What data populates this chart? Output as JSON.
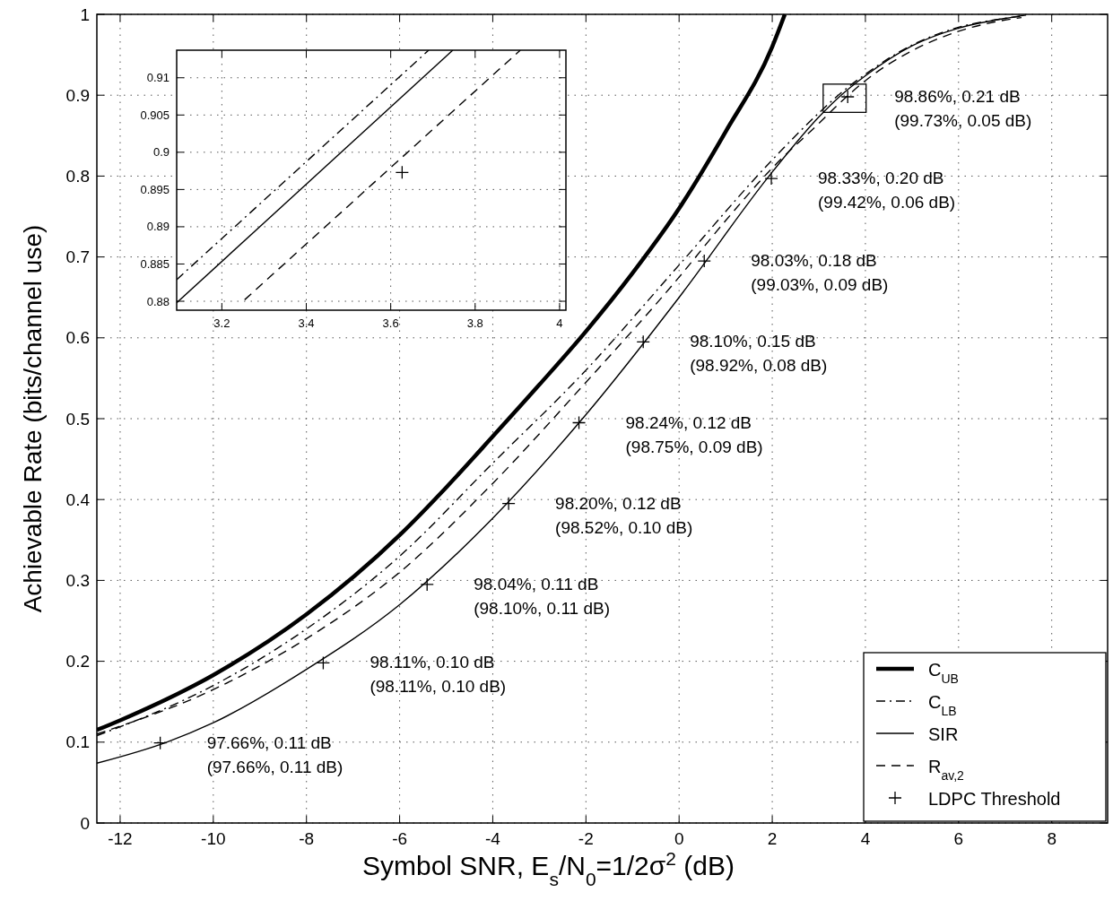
{
  "chart_data": [
    {
      "type": "line",
      "xlabel": "Symbol SNR, E$_{s}$/N$_{0}$=1/2σ$^{2}$ (dB)",
      "ylabel": "Achievable Rate (bits/channel use)",
      "xlim": [
        -12.5,
        9.2
      ],
      "ylim": [
        0,
        1
      ],
      "xticks": [
        -12,
        -10,
        -8,
        -6,
        -4,
        -2,
        0,
        2,
        4,
        6,
        8
      ],
      "yticks": [
        0,
        0.1,
        0.2,
        0.3,
        0.4,
        0.5,
        0.6,
        0.7,
        0.8,
        0.9,
        1
      ],
      "grid": true,
      "legend": "bottom right",
      "series": [
        {
          "name": "C$_{UB}$",
          "color": "#000000",
          "line_style": "solid",
          "x": [
            -12.5,
            -12,
            -10,
            -8,
            -6,
            -5,
            -4,
            -3,
            -2,
            -1,
            0,
            1,
            2,
            2.27
          ],
          "values": [
            0.115,
            0.127,
            0.183,
            0.258,
            0.356,
            0.415,
            0.478,
            0.542,
            0.608,
            0.68,
            0.76,
            0.855,
            0.96,
            1.0
          ]
        },
        {
          "name": "C$_{LB}$",
          "color": "#000000",
          "line_style": "dashdot",
          "x": [
            -12.5,
            -10,
            -8,
            -6,
            -4,
            -2,
            0,
            2,
            3,
            3.5,
            4,
            5,
            6,
            7,
            7.4
          ],
          "values": [
            0.108,
            0.17,
            0.24,
            0.33,
            0.445,
            0.56,
            0.69,
            0.82,
            0.878,
            0.904,
            0.926,
            0.962,
            0.984,
            0.995,
            0.998
          ]
        },
        {
          "name": "SIR",
          "color": "#000000",
          "line_style": "solid",
          "x": [
            -12.5,
            -11,
            -10,
            -8,
            -6,
            -4,
            -2,
            0,
            2,
            3,
            3.5,
            4,
            5,
            6,
            7,
            7.45
          ],
          "values": [
            0.074,
            0.1,
            0.124,
            0.19,
            0.27,
            0.377,
            0.505,
            0.65,
            0.805,
            0.873,
            0.901,
            0.924,
            0.961,
            0.983,
            0.995,
            0.999
          ]
        },
        {
          "name": "R$_{av,2}$",
          "color": "#000000",
          "line_style": "dashed",
          "x": [
            -12.5,
            -10,
            -8,
            -6,
            -4,
            -2,
            0,
            1,
            2,
            3,
            3.5,
            4,
            5,
            6,
            7,
            7.35
          ],
          "values": [
            0.11,
            0.165,
            0.228,
            0.31,
            0.42,
            0.545,
            0.675,
            0.745,
            0.81,
            0.865,
            0.893,
            0.918,
            0.955,
            0.979,
            0.993,
            0.996
          ]
        },
        {
          "name": "LDPC Threshold",
          "type": "scatter",
          "color": "#000000",
          "marker": "cross",
          "x": [
            -11.14,
            -7.64,
            -5.41,
            -3.66,
            -2.15,
            -0.77,
            0.54,
            1.98,
            3.62
          ],
          "values": [
            0.099,
            0.198,
            0.295,
            0.395,
            0.495,
            0.595,
            0.695,
            0.797,
            0.898
          ]
        }
      ],
      "annotations": [
        "97.66%, 0.11 dB\n(97.66%, 0.11 dB)",
        "98.11%, 0.10 dB\n(98.11%, 0.10 dB)",
        "98.04%, 0.11 dB\n(98.10%, 0.11 dB)",
        "98.20%, 0.12 dB\n(98.52%, 0.10 dB)",
        "98.24%, 0.12 dB\n(98.75%, 0.09 dB)",
        "98.10%, 0.15 dB\n(98.92%, 0.08 dB)",
        "98.03%, 0.18 dB\n(99.03%, 0.09 dB)",
        "98.33%, 0.20 dB\n(99.42%, 0.06 dB)",
        "98.86%, 0.21 dB\n(99.73%, 0.05 dB)"
      ]
    },
    {
      "type": "line",
      "xlim": [
        3.093,
        4.015
      ],
      "ylim": [
        0.8788,
        0.9137
      ],
      "xticks": [
        3.2,
        3.4,
        3.6,
        3.8,
        4
      ],
      "yticks": [
        0.88,
        0.885,
        0.89,
        0.895,
        0.9,
        0.905,
        0.91
      ],
      "grid": true,
      "series": [
        {
          "color": "#000000",
          "line_style": "dashdot",
          "x": [
            3.093,
            3.69
          ],
          "values": [
            0.8829,
            0.9137
          ]
        },
        {
          "color": "#000000",
          "line_style": "solid",
          "x": [
            3.093,
            3.747
          ],
          "values": [
            0.8798,
            0.9137
          ]
        },
        {
          "color": "#000000",
          "line_style": "dashed",
          "x": [
            3.254,
            3.907
          ],
          "values": [
            0.8802,
            0.9137
          ]
        },
        {
          "type": "scatter",
          "color": "#000000",
          "marker": "cross",
          "x": [
            3.627
          ],
          "values": [
            0.8973
          ]
        }
      ]
    }
  ]
}
